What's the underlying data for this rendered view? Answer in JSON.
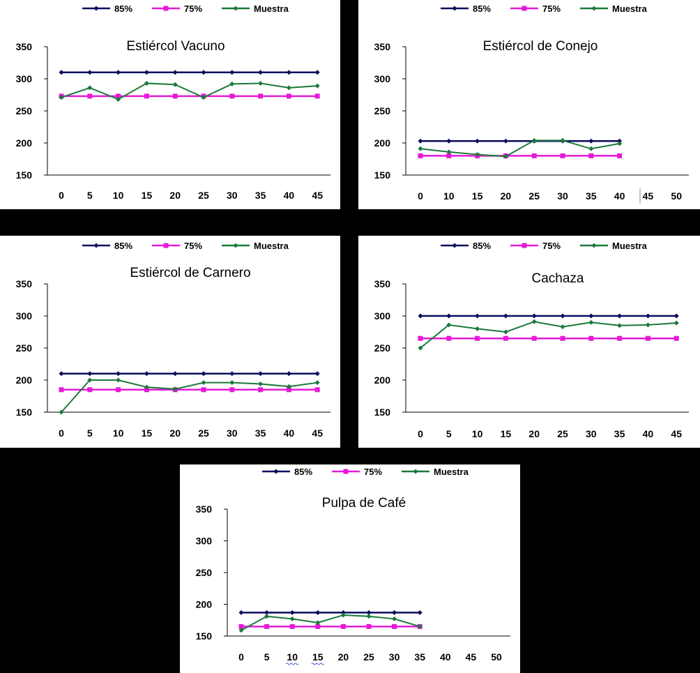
{
  "legend": [
    {
      "label": "85%",
      "color": "#0b0b5e",
      "marker": "diamond"
    },
    {
      "label": "75%",
      "color": "#e619d9",
      "marker": "square"
    },
    {
      "label": "Muestra",
      "color": "#1a7a3a",
      "marker": "diamond"
    }
  ],
  "chart_data": [
    {
      "type": "line",
      "title": "Estiércol Vacuno",
      "ylim": [
        150,
        350
      ],
      "yticks": [
        "150",
        "200",
        "250",
        "300",
        "350"
      ],
      "xtick_labels": [
        "0",
        "5",
        "10",
        "15",
        "20",
        "25",
        "30",
        "35",
        "40",
        "45"
      ],
      "series": [
        {
          "name": "85%",
          "x": [
            0,
            5,
            10,
            15,
            20,
            25,
            30,
            35,
            40,
            45
          ],
          "values": [
            310,
            310,
            310,
            310,
            310,
            310,
            310,
            310,
            310,
            310
          ]
        },
        {
          "name": "75%",
          "x": [
            0,
            5,
            10,
            15,
            20,
            25,
            30,
            35,
            40,
            45
          ],
          "values": [
            273,
            273,
            273,
            273,
            273,
            273,
            273,
            273,
            273,
            273
          ]
        },
        {
          "name": "Muestra",
          "x": [
            0,
            5,
            10,
            15,
            20,
            25,
            30,
            35,
            40,
            45
          ],
          "values": [
            271,
            286,
            268,
            293,
            291,
            271,
            292,
            293,
            286,
            289
          ]
        }
      ]
    },
    {
      "type": "line",
      "title": "Estiércol de Conejo",
      "ylim": [
        150,
        350
      ],
      "yticks": [
        "150",
        "200",
        "250",
        "300",
        "350"
      ],
      "xtick_labels": [
        "0",
        "10",
        "15",
        "20",
        "25",
        "30",
        "35",
        "40",
        "45",
        "50"
      ],
      "series": [
        {
          "name": "85%",
          "x": [
            0,
            1,
            2,
            3,
            4,
            5,
            6,
            7
          ],
          "values": [
            203,
            203,
            203,
            203,
            203,
            203,
            203,
            203
          ]
        },
        {
          "name": "75%",
          "x": [
            0,
            1,
            2,
            3,
            4,
            5,
            6,
            7
          ],
          "values": [
            180,
            180,
            180,
            180,
            180,
            180,
            180,
            180
          ]
        },
        {
          "name": "Muestra",
          "x": [
            0,
            1,
            2,
            3,
            4,
            5,
            6,
            7
          ],
          "values": [
            191,
            186,
            182,
            179,
            204,
            204,
            191,
            199
          ]
        }
      ]
    },
    {
      "type": "line",
      "title": "Estiércol de Carnero",
      "ylim": [
        150,
        350
      ],
      "yticks": [
        "150",
        "200",
        "250",
        "300",
        "350"
      ],
      "xtick_labels": [
        "0",
        "5",
        "10",
        "15",
        "20",
        "25",
        "30",
        "35",
        "40",
        "45"
      ],
      "series": [
        {
          "name": "85%",
          "x": [
            0,
            5,
            10,
            15,
            20,
            25,
            30,
            35,
            40,
            45
          ],
          "values": [
            210,
            210,
            210,
            210,
            210,
            210,
            210,
            210,
            210,
            210
          ]
        },
        {
          "name": "75%",
          "x": [
            0,
            5,
            10,
            15,
            20,
            25,
            30,
            35,
            40,
            45
          ],
          "values": [
            185,
            185,
            185,
            185,
            185,
            185,
            185,
            185,
            185,
            185
          ]
        },
        {
          "name": "Muestra",
          "x": [
            0,
            5,
            10,
            15,
            20,
            25,
            30,
            35,
            40,
            45
          ],
          "values": [
            150,
            200,
            200,
            189,
            186,
            196,
            196,
            194,
            190,
            196
          ]
        }
      ]
    },
    {
      "type": "line",
      "title": "Cachaza",
      "ylim": [
        150,
        350
      ],
      "yticks": [
        "150",
        "200",
        "250",
        "300",
        "350"
      ],
      "xtick_labels": [
        "0",
        "5",
        "10",
        "15",
        "20",
        "25",
        "30",
        "35",
        "40",
        "45"
      ],
      "series": [
        {
          "name": "85%",
          "x": [
            0,
            5,
            10,
            15,
            20,
            25,
            30,
            35,
            40,
            45
          ],
          "values": [
            300,
            300,
            300,
            300,
            300,
            300,
            300,
            300,
            300,
            300
          ]
        },
        {
          "name": "75%",
          "x": [
            0,
            5,
            10,
            15,
            20,
            25,
            30,
            35,
            40,
            45
          ],
          "values": [
            265,
            265,
            265,
            265,
            265,
            265,
            265,
            265,
            265,
            265
          ]
        },
        {
          "name": "Muestra",
          "x": [
            0,
            5,
            10,
            15,
            20,
            25,
            30,
            35,
            40,
            45
          ],
          "values": [
            250,
            286,
            280,
            275,
            291,
            283,
            290,
            285,
            286,
            289
          ]
        }
      ]
    },
    {
      "type": "line",
      "title": "Pulpa de Café",
      "ylim": [
        150,
        350
      ],
      "yticks": [
        "150",
        "200",
        "250",
        "300",
        "350"
      ],
      "xtick_labels": [
        "0",
        "5",
        "10",
        "15",
        "20",
        "25",
        "30",
        "35",
        "40",
        "45",
        "50"
      ],
      "series": [
        {
          "name": "85%",
          "x": [
            0,
            5,
            10,
            15,
            20,
            25,
            30,
            35
          ],
          "values": [
            187,
            187,
            187,
            187,
            187,
            187,
            187,
            187
          ]
        },
        {
          "name": "75%",
          "x": [
            0,
            5,
            10,
            15,
            20,
            25,
            30,
            35
          ],
          "values": [
            165,
            165,
            165,
            165,
            165,
            165,
            165,
            165
          ]
        },
        {
          "name": "Muestra",
          "x": [
            0,
            5,
            10,
            15,
            20,
            25,
            30,
            35
          ],
          "values": [
            159,
            181,
            177,
            171,
            183,
            181,
            177,
            165
          ]
        }
      ]
    }
  ]
}
